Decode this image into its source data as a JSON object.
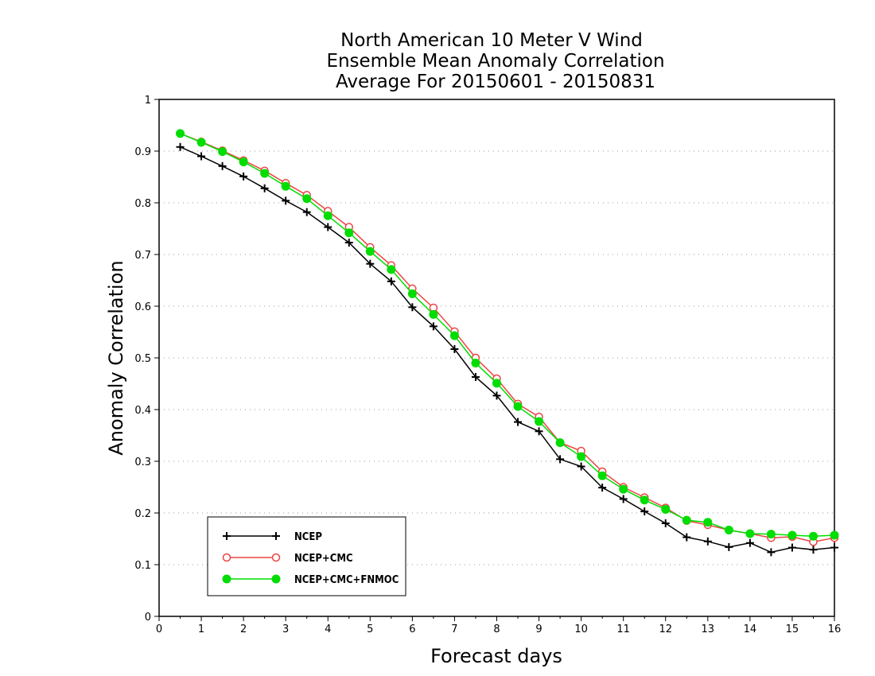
{
  "chart_data": {
    "type": "line",
    "title": [
      "North American 10 Meter V Wind",
      "Ensemble Mean Anomaly Correlation",
      "Average For 20150601 - 20150831"
    ],
    "xlabel": "Forecast days",
    "ylabel": "Anomaly Correlation",
    "xlim": [
      0,
      16
    ],
    "ylim": [
      0,
      1
    ],
    "x_ticks": [
      "0",
      "1",
      "2",
      "3",
      "4",
      "5",
      "6",
      "7",
      "8",
      "9",
      "10",
      "11",
      "12",
      "13",
      "14",
      "15",
      "16"
    ],
    "y_ticks": [
      "0",
      "0.1",
      "0.2",
      "0.3",
      "0.4",
      "0.5",
      "0.6",
      "0.7",
      "0.8",
      "0.9",
      "1"
    ],
    "grid": "horizontal dotted",
    "legend_position": "bottom-left",
    "x": [
      0.5,
      1,
      1.5,
      2,
      2.5,
      3,
      3.5,
      4,
      4.5,
      5,
      5.5,
      6,
      6.5,
      7,
      7.5,
      8,
      8.5,
      9,
      9.5,
      10,
      10.5,
      11,
      11.5,
      12,
      12.5,
      13,
      13.5,
      14,
      14.5,
      15,
      15.5,
      16
    ],
    "series": [
      {
        "name": "NCEP",
        "color": "#000000",
        "marker": "plus",
        "values": [
          0.908,
          0.89,
          0.871,
          0.851,
          0.828,
          0.804,
          0.782,
          0.753,
          0.723,
          0.682,
          0.648,
          0.598,
          0.561,
          0.517,
          0.463,
          0.427,
          0.376,
          0.358,
          0.304,
          0.29,
          0.249,
          0.227,
          0.203,
          0.18,
          0.153,
          0.145,
          0.134,
          0.142,
          0.124,
          0.133,
          0.129,
          0.133
        ]
      },
      {
        "name": "NCEP+CMC",
        "color": "#ee4444",
        "marker": "open-circle",
        "values": [
          0.934,
          0.918,
          0.901,
          0.882,
          0.862,
          0.838,
          0.815,
          0.784,
          0.753,
          0.714,
          0.679,
          0.634,
          0.597,
          0.551,
          0.5,
          0.46,
          0.411,
          0.386,
          0.336,
          0.32,
          0.28,
          0.25,
          0.23,
          0.21,
          0.185,
          0.177,
          0.167,
          0.16,
          0.152,
          0.154,
          0.144,
          0.152
        ]
      },
      {
        "name": "NCEP+CMC+FNMOC",
        "color": "#00dd00",
        "marker": "filled-circle",
        "values": [
          0.934,
          0.917,
          0.899,
          0.879,
          0.857,
          0.832,
          0.808,
          0.775,
          0.742,
          0.706,
          0.671,
          0.624,
          0.584,
          0.543,
          0.49,
          0.451,
          0.406,
          0.377,
          0.336,
          0.309,
          0.272,
          0.246,
          0.225,
          0.207,
          0.186,
          0.182,
          0.167,
          0.16,
          0.159,
          0.157,
          0.155,
          0.157
        ]
      }
    ]
  }
}
